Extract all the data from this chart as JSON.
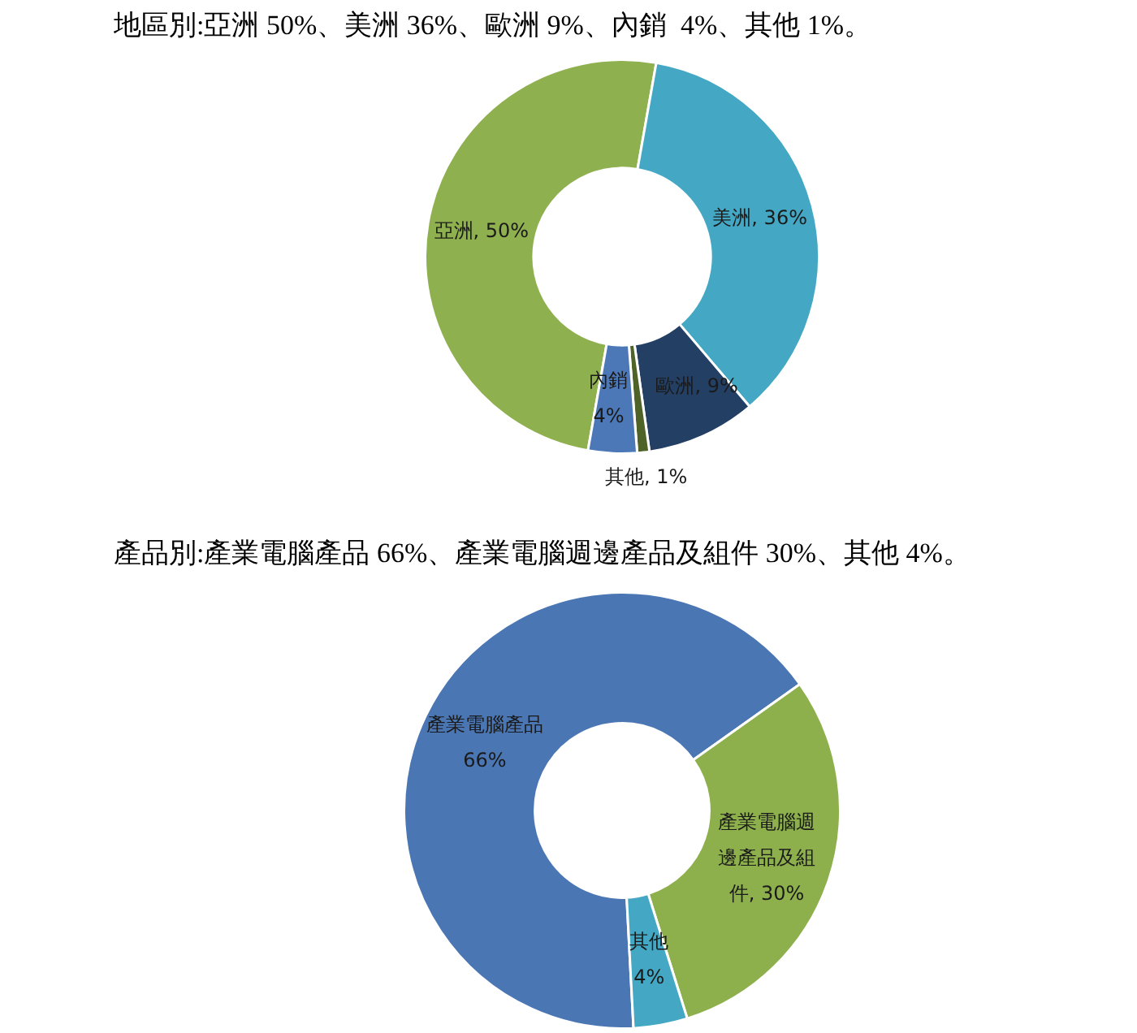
{
  "chart_data": [
    {
      "type": "donut",
      "title": "地區別:亞洲 50%、美洲 36%、歐洲 9%、內銷  4%、其他 1%。",
      "categories": [
        "亞洲",
        "美洲",
        "歐洲",
        "其他",
        "內銷"
      ],
      "values": [
        50,
        36,
        9,
        1,
        4
      ],
      "colors": [
        "#8fb04f",
        "#44a8c4",
        "#243f64",
        "#4f6228",
        "#4c78b8"
      ],
      "value_labels": [
        "50%",
        "36%",
        "9%",
        "1%",
        "4%"
      ],
      "legend": false
    },
    {
      "type": "donut",
      "title": "產品別:產業電腦產品 66%、產業電腦週邊產品及組件 30%、其他 4%。",
      "categories": [
        "產業電腦產品",
        "產業電腦週邊產品及組件",
        "其他"
      ],
      "values": [
        66,
        30,
        4
      ],
      "colors": [
        "#4a76b4",
        "#8db04c",
        "#44a8c4"
      ],
      "value_labels": [
        "66%",
        "30%",
        "4%"
      ],
      "legend": false
    }
  ]
}
